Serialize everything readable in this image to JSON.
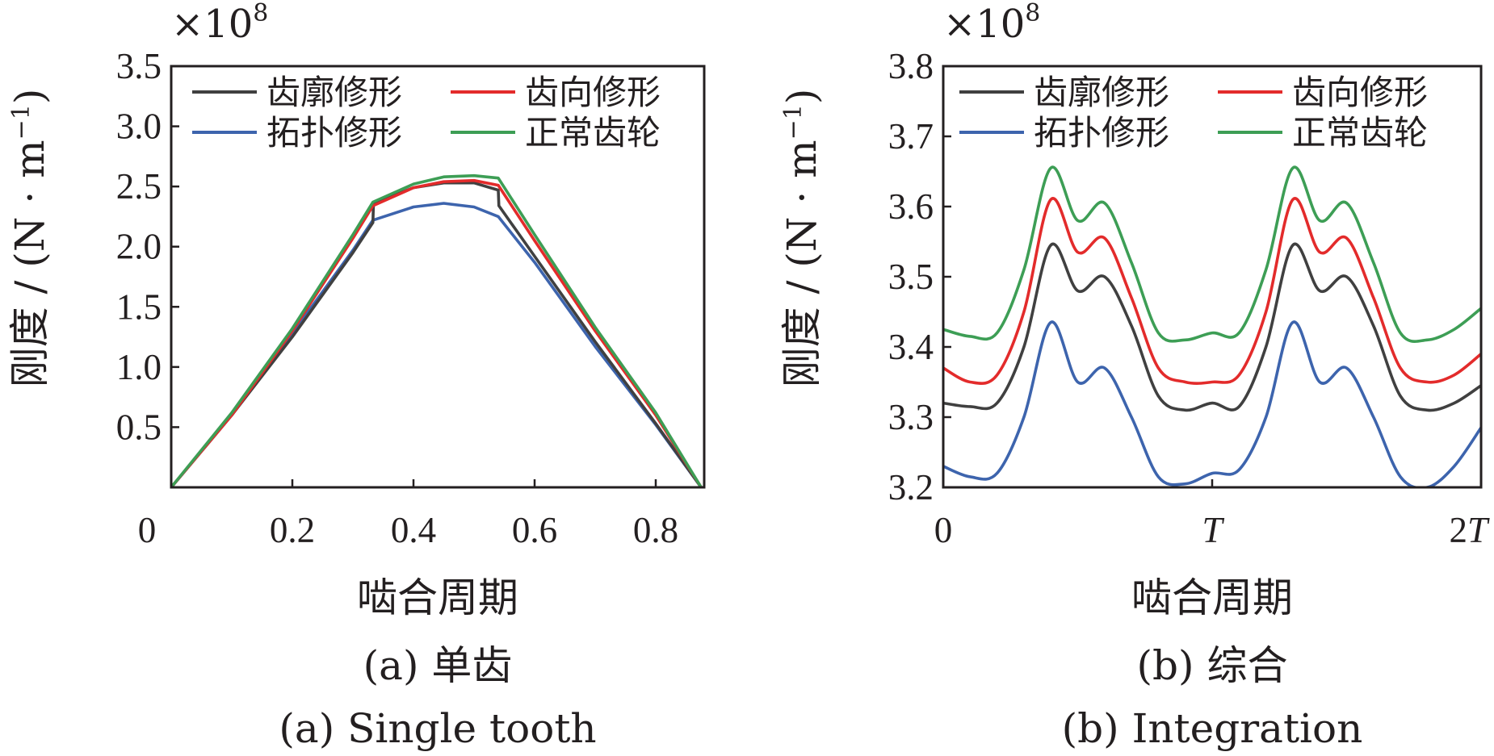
{
  "chart_data": [
    {
      "type": "line",
      "exponent_label": "×10",
      "exponent_power": "8",
      "xlabel": "啮合周期",
      "ylabel": "刚度 / (N · m",
      "ylabel_sup": "−1",
      "ylabel_close": ")",
      "caption_cn": "(a)  单齿",
      "caption_en": "(a)  Single tooth",
      "xlim": [
        0,
        0.88
      ],
      "ylim": [
        0,
        3.5
      ],
      "x_ticks": [
        0,
        0.2,
        0.4,
        0.6,
        0.8
      ],
      "x_tick_labels": [
        "0",
        "0.2",
        "0.4",
        "0.6",
        "0.8"
      ],
      "y_ticks": [
        0.5,
        1.0,
        1.5,
        2.0,
        2.5,
        3.0,
        3.5
      ],
      "y_tick_labels": [
        "0.5",
        "1.0",
        "1.5",
        "2.0",
        "2.5",
        "3.0",
        "3.5"
      ],
      "legend_position": "top",
      "series": [
        {
          "name": "齿廓修形",
          "color": "#404040",
          "x": [
            0,
            0.1,
            0.2,
            0.3,
            0.333,
            0.334,
            0.4,
            0.45,
            0.5,
            0.54,
            0.541,
            0.6,
            0.7,
            0.8,
            0.875
          ],
          "y": [
            0,
            0.6,
            1.25,
            1.95,
            2.2,
            2.36,
            2.49,
            2.53,
            2.53,
            2.47,
            2.34,
            1.92,
            1.21,
            0.53,
            0
          ]
        },
        {
          "name": "齿向修形",
          "color": "#e32b2b",
          "x": [
            0,
            0.1,
            0.2,
            0.3,
            0.333,
            0.4,
            0.45,
            0.5,
            0.54,
            0.6,
            0.7,
            0.8,
            0.875
          ],
          "y": [
            0,
            0.6,
            1.3,
            2.07,
            2.34,
            2.49,
            2.54,
            2.55,
            2.51,
            2.05,
            1.3,
            0.6,
            0
          ]
        },
        {
          "name": "拓扑修形",
          "color": "#3d64ad",
          "x": [
            0,
            0.1,
            0.2,
            0.3,
            0.333,
            0.4,
            0.45,
            0.5,
            0.54,
            0.6,
            0.7,
            0.8,
            0.875
          ],
          "y": [
            0,
            0.6,
            1.28,
            1.97,
            2.22,
            2.33,
            2.36,
            2.33,
            2.25,
            1.87,
            1.17,
            0.52,
            0
          ]
        },
        {
          "name": "正常齿轮",
          "color": "#3d9e55",
          "x": [
            0,
            0.1,
            0.2,
            0.3,
            0.333,
            0.4,
            0.45,
            0.5,
            0.54,
            0.6,
            0.7,
            0.8,
            0.875
          ],
          "y": [
            0,
            0.62,
            1.32,
            2.1,
            2.37,
            2.52,
            2.58,
            2.59,
            2.57,
            2.1,
            1.33,
            0.62,
            0
          ]
        }
      ]
    },
    {
      "type": "line",
      "exponent_label": "×10",
      "exponent_power": "8",
      "xlabel": "啮合周期",
      "ylabel": "刚度 / (N · m",
      "ylabel_sup": "−1",
      "ylabel_close": ")",
      "caption_cn": "(b)  综合",
      "caption_en": "(b)  Integration",
      "xlim": [
        0,
        2
      ],
      "ylim": [
        3.2,
        3.8
      ],
      "x_ticks": [
        0,
        1,
        2
      ],
      "x_tick_labels": [
        "0",
        "T",
        "2T"
      ],
      "y_ticks": [
        3.2,
        3.3,
        3.4,
        3.5,
        3.6,
        3.7,
        3.8
      ],
      "y_tick_labels": [
        "3.2",
        "3.3",
        "3.4",
        "3.5",
        "3.6",
        "3.7",
        "3.8"
      ],
      "legend_position": "top",
      "series": [
        {
          "name": "齿廓修形",
          "color": "#404040",
          "x": [
            0,
            0.1,
            0.2,
            0.3,
            0.4,
            0.5,
            0.6,
            0.7,
            0.8,
            0.9,
            1.0,
            1.1,
            1.2,
            1.3,
            1.4,
            1.5,
            1.6,
            1.7,
            1.8,
            1.9,
            2.0
          ],
          "y": [
            3.32,
            3.315,
            3.32,
            3.4,
            3.545,
            3.48,
            3.5,
            3.43,
            3.33,
            3.31,
            3.32,
            3.315,
            3.4,
            3.545,
            3.48,
            3.5,
            3.43,
            3.33,
            3.31,
            3.32,
            3.345
          ]
        },
        {
          "name": "齿向修形",
          "color": "#e32b2b",
          "x": [
            0,
            0.1,
            0.2,
            0.3,
            0.4,
            0.5,
            0.6,
            0.7,
            0.8,
            0.9,
            1.0,
            1.1,
            1.2,
            1.3,
            1.4,
            1.5,
            1.6,
            1.7,
            1.8,
            1.9,
            2.0
          ],
          "y": [
            3.37,
            3.35,
            3.36,
            3.45,
            3.61,
            3.535,
            3.555,
            3.47,
            3.37,
            3.35,
            3.35,
            3.36,
            3.45,
            3.61,
            3.535,
            3.555,
            3.47,
            3.37,
            3.35,
            3.36,
            3.39
          ]
        },
        {
          "name": "拓扑修形",
          "color": "#3d64ad",
          "x": [
            0,
            0.1,
            0.2,
            0.3,
            0.4,
            0.5,
            0.6,
            0.7,
            0.8,
            0.9,
            1.0,
            1.1,
            1.2,
            1.3,
            1.4,
            1.5,
            1.6,
            1.7,
            1.8,
            1.9,
            2.0
          ],
          "y": [
            3.23,
            3.215,
            3.22,
            3.3,
            3.435,
            3.35,
            3.37,
            3.3,
            3.215,
            3.205,
            3.22,
            3.225,
            3.3,
            3.435,
            3.35,
            3.37,
            3.3,
            3.215,
            3.2,
            3.23,
            3.285
          ]
        },
        {
          "name": "正常齿轮",
          "color": "#3d9e55",
          "x": [
            0,
            0.1,
            0.2,
            0.3,
            0.4,
            0.5,
            0.6,
            0.7,
            0.8,
            0.9,
            1.0,
            1.1,
            1.2,
            1.3,
            1.4,
            1.5,
            1.6,
            1.7,
            1.8,
            1.9,
            2.0
          ],
          "y": [
            3.425,
            3.415,
            3.42,
            3.51,
            3.655,
            3.58,
            3.605,
            3.52,
            3.42,
            3.41,
            3.42,
            3.42,
            3.51,
            3.655,
            3.58,
            3.605,
            3.52,
            3.42,
            3.41,
            3.425,
            3.455
          ]
        }
      ]
    }
  ]
}
